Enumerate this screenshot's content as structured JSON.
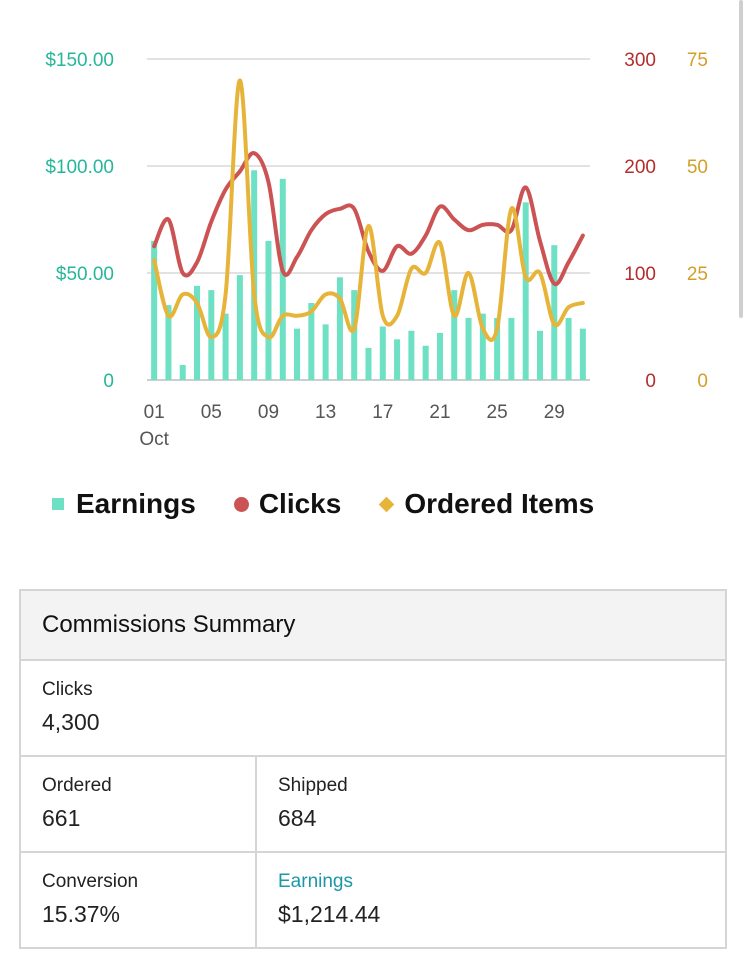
{
  "chart_data": {
    "type": "bar",
    "x_tick_labels": [
      "01",
      "05",
      "09",
      "13",
      "17",
      "21",
      "25",
      "29"
    ],
    "x_sub_label": "Oct",
    "days": [
      1,
      2,
      3,
      4,
      5,
      6,
      7,
      8,
      9,
      10,
      11,
      12,
      13,
      14,
      15,
      16,
      17,
      18,
      19,
      20,
      21,
      22,
      23,
      24,
      25,
      26,
      27,
      28,
      29,
      30,
      31
    ],
    "y_left": {
      "ticks": [
        "$150.00",
        "$100.00",
        "$50.00",
        "0"
      ],
      "range": [
        0,
        150
      ],
      "color": "#26b79a"
    },
    "y_right_clicks": {
      "ticks": [
        "300",
        "200",
        "100",
        "0"
      ],
      "range": [
        0,
        300
      ],
      "color": "#b22d2d"
    },
    "y_right_items": {
      "ticks": [
        "75",
        "50",
        "25",
        "0"
      ],
      "range": [
        0,
        75
      ],
      "color": "#d1a02a"
    },
    "grid": true,
    "series": [
      {
        "name": "Earnings",
        "kind": "bar",
        "color": "#6ee0c3",
        "axis": "left",
        "values": [
          65,
          35,
          7,
          44,
          42,
          31,
          49,
          98,
          65,
          94,
          24,
          36,
          26,
          48,
          42,
          15,
          25,
          19,
          23,
          16,
          22,
          42,
          29,
          31,
          29,
          29,
          83,
          23,
          63,
          29,
          24
        ]
      },
      {
        "name": "Clicks",
        "kind": "line",
        "color": "#cc5353",
        "axis": "clicks",
        "values": [
          125,
          150,
          100,
          110,
          148,
          178,
          195,
          212,
          185,
          102,
          115,
          140,
          155,
          160,
          160,
          120,
          102,
          125,
          118,
          135,
          162,
          150,
          140,
          145,
          145,
          140,
          180,
          130,
          90,
          110,
          135
        ]
      },
      {
        "name": "Ordered Items",
        "kind": "line",
        "color": "#e7b43a",
        "axis": "items",
        "values": [
          28,
          15,
          20,
          18,
          10,
          20,
          70,
          20,
          10,
          15,
          15,
          16,
          20,
          19,
          12,
          36,
          15,
          15,
          26,
          25,
          32,
          15,
          25,
          12,
          12,
          40,
          24,
          25,
          13,
          17,
          18
        ]
      }
    ]
  },
  "legend": {
    "earnings": "Earnings",
    "clicks": "Clicks",
    "ordered_items": "Ordered Items"
  },
  "summary": {
    "title": "Commissions Summary",
    "clicks_label": "Clicks",
    "clicks_value": "4,300",
    "ordered_label": "Ordered",
    "ordered_value": "661",
    "shipped_label": "Shipped",
    "shipped_value": "684",
    "conversion_label": "Conversion",
    "conversion_value": "15.37%",
    "earnings_label": "Earnings",
    "earnings_value": "$1,214.44"
  }
}
